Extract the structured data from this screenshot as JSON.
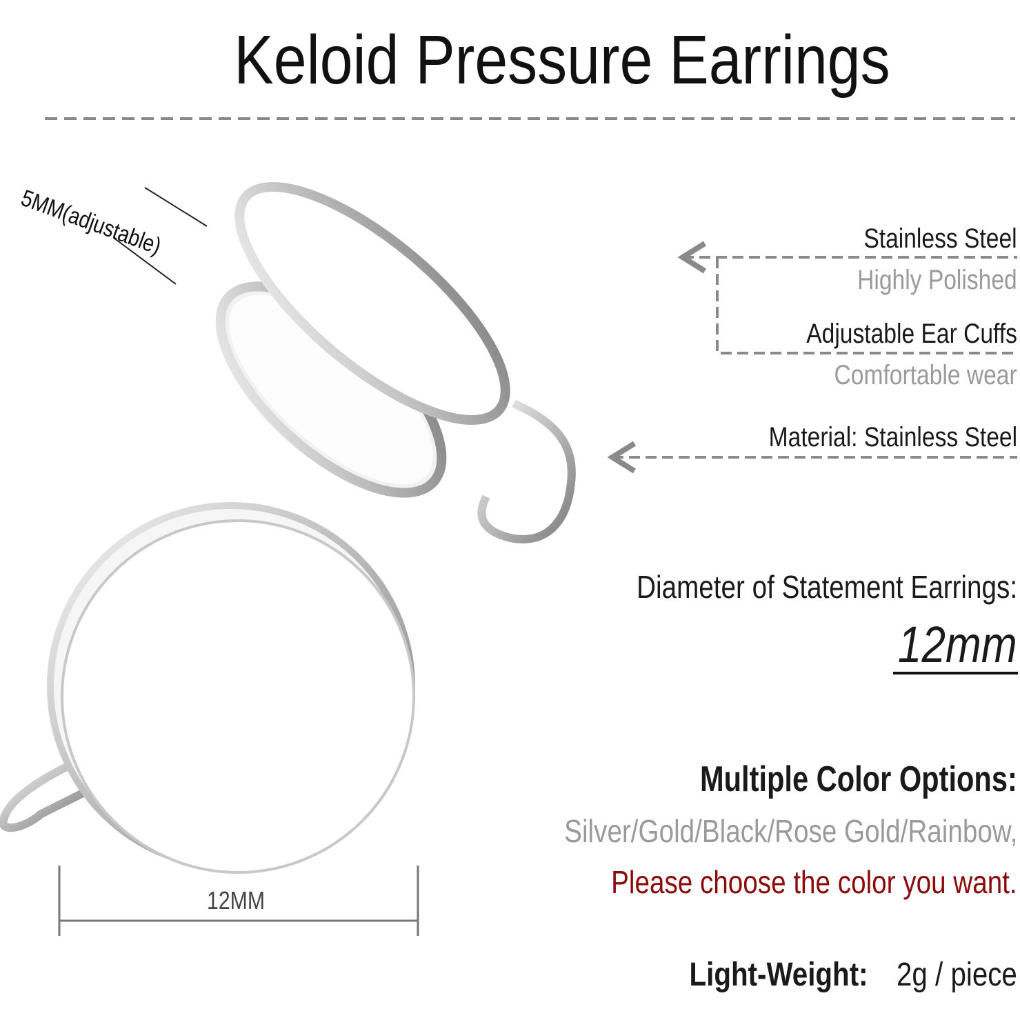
{
  "title": "Keloid Pressure  Earrings",
  "dimension_labels": {
    "gap": "5MM(adjustable)",
    "width": "12MM"
  },
  "features": [
    {
      "label": "Stainless Steel",
      "sub": "Highly Polished"
    },
    {
      "label": "Adjustable Ear Cuffs",
      "sub": "Comfortable wear"
    }
  ],
  "material": "Material: Stainless Steel",
  "diameter": {
    "label": "Diameter of Statement Earrings:",
    "value": "12mm"
  },
  "colors": {
    "label": "Multiple Color Options:",
    "options": "Silver/Gold/Black/Rose Gold/Rainbow,",
    "note": "Please choose the color you want.",
    "note_color": "#8b0a0a"
  },
  "weight": {
    "label": "Light-Weight:",
    "value": "2g / piece"
  }
}
